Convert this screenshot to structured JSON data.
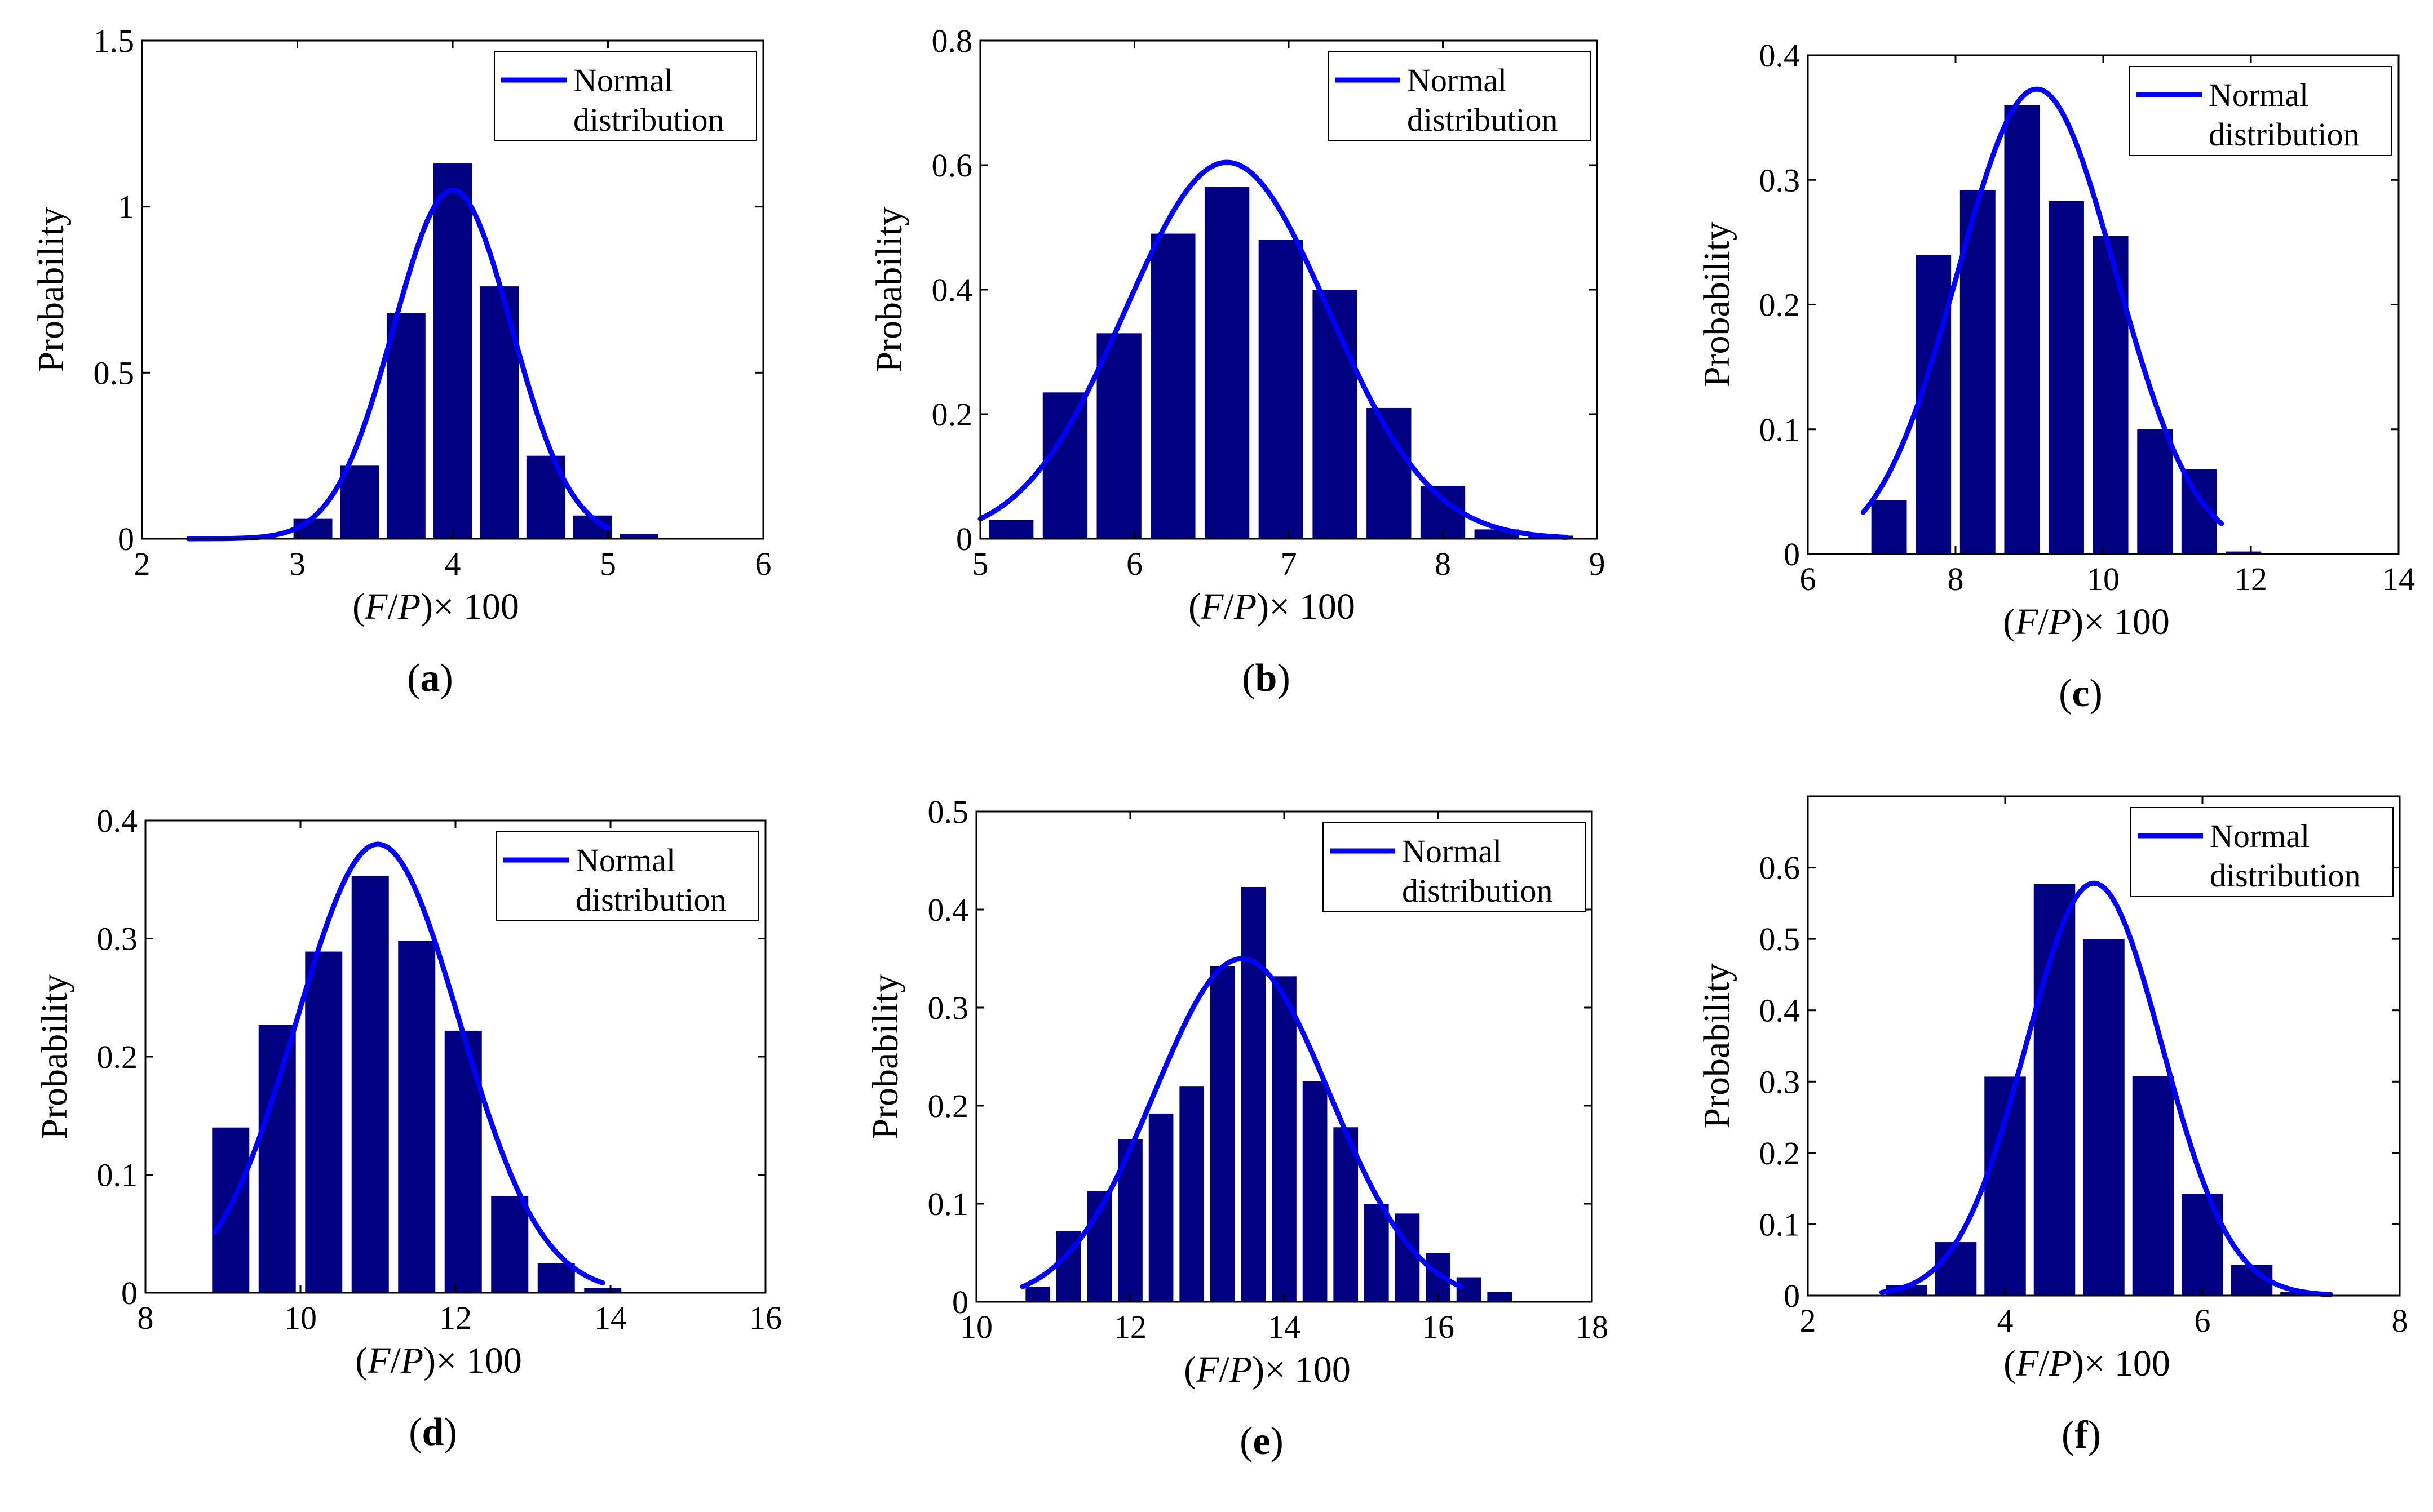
{
  "figure": {
    "bar_color": "#000080",
    "curve_color": "#0000ff",
    "legend_label": "Normal distribution",
    "legend_lines": [
      "Normal",
      "distribution"
    ]
  },
  "chart_data": [
    {
      "id": "a",
      "panel_label": "a",
      "type": "bar",
      "xlabel": "(F/P)× 100",
      "ylabel": "Probability",
      "xlim": [
        2,
        6
      ],
      "ylim": [
        0,
        1.5
      ],
      "xticks": [
        2,
        3,
        4,
        5,
        6
      ],
      "yticks": [
        0,
        0.5,
        1,
        1.5
      ],
      "xtick_labels": [
        "2",
        "3",
        "4",
        "5",
        "6"
      ],
      "ytick_labels": [
        "0",
        "0.5",
        "1",
        "1.5"
      ],
      "bar_width": 0.25,
      "bins": [
        3.1,
        3.4,
        3.7,
        4.0,
        4.3,
        4.6,
        4.9,
        5.2
      ],
      "values": [
        0.06,
        0.22,
        0.68,
        1.13,
        0.76,
        0.25,
        0.07,
        0.015
      ],
      "normal_fit": {
        "mu": 4.0,
        "sigma": 0.38,
        "x_range": [
          2.3,
          5.0
        ]
      },
      "legend_position": "top-right"
    },
    {
      "id": "b",
      "panel_label": "b",
      "type": "bar",
      "xlabel": "(F/P)× 100",
      "ylabel": "Probability",
      "xlim": [
        5,
        9
      ],
      "ylim": [
        0,
        0.8
      ],
      "xticks": [
        5,
        6,
        7,
        8,
        9
      ],
      "yticks": [
        0,
        0.2,
        0.4,
        0.6,
        0.8
      ],
      "xtick_labels": [
        "5",
        "6",
        "7",
        "8",
        "9"
      ],
      "ytick_labels": [
        "0",
        "0.2",
        "0.4",
        "0.6",
        "0.8"
      ],
      "bar_width": 0.29,
      "bins": [
        5.2,
        5.55,
        5.9,
        6.25,
        6.6,
        6.95,
        7.3,
        7.65,
        8.0,
        8.35,
        8.7
      ],
      "values": [
        0.03,
        0.235,
        0.33,
        0.49,
        0.565,
        0.48,
        0.4,
        0.21,
        0.085,
        0.015,
        0.005
      ],
      "normal_fit": {
        "mu": 6.6,
        "sigma": 0.66,
        "x_range": [
          5.0,
          8.8
        ]
      },
      "legend_position": "top-right"
    },
    {
      "id": "c",
      "panel_label": "c",
      "type": "bar",
      "xlabel": "(F/P)× 100",
      "ylabel": "Probability",
      "xlim": [
        6,
        14
      ],
      "ylim": [
        0,
        0.4
      ],
      "xticks": [
        6,
        8,
        10,
        12,
        14
      ],
      "yticks": [
        0,
        0.1,
        0.2,
        0.3,
        0.4
      ],
      "xtick_labels": [
        "6",
        "8",
        "10",
        "12",
        "14"
      ],
      "ytick_labels": [
        "0",
        "0.1",
        "0.2",
        "0.3",
        "0.4"
      ],
      "bar_width": 0.48,
      "bins": [
        7.1,
        7.7,
        8.3,
        8.9,
        9.5,
        10.1,
        10.7,
        11.3,
        11.9
      ],
      "values": [
        0.043,
        0.24,
        0.292,
        0.36,
        0.283,
        0.255,
        0.1,
        0.068,
        0.002
      ],
      "normal_fit": {
        "mu": 9.1,
        "sigma": 1.07,
        "x_range": [
          6.75,
          11.6
        ]
      },
      "legend_position": "top-right"
    },
    {
      "id": "d",
      "panel_label": "d",
      "type": "bar",
      "xlabel": "(F/P)× 100",
      "ylabel": "Probability",
      "xlim": [
        8,
        16
      ],
      "ylim": [
        0,
        0.4
      ],
      "xticks": [
        8,
        10,
        12,
        14,
        16
      ],
      "yticks": [
        0,
        0.1,
        0.2,
        0.3,
        0.4
      ],
      "xtick_labels": [
        "8",
        "10",
        "12",
        "14",
        "16"
      ],
      "ytick_labels": [
        "0",
        "0.1",
        "0.2",
        "0.3",
        "0.4"
      ],
      "bar_width": 0.48,
      "bins": [
        9.1,
        9.7,
        10.3,
        10.9,
        11.5,
        12.1,
        12.7,
        13.3,
        13.9
      ],
      "values": [
        0.14,
        0.227,
        0.289,
        0.353,
        0.298,
        0.222,
        0.082,
        0.025,
        0.004
      ],
      "normal_fit": {
        "mu": 11.0,
        "sigma": 1.05,
        "x_range": [
          8.9,
          13.9
        ]
      },
      "legend_position": "top-right"
    },
    {
      "id": "e",
      "panel_label": "e",
      "type": "bar",
      "xlabel": "(F/P)× 100",
      "ylabel": "Probability",
      "xlim": [
        10,
        18
      ],
      "ylim": [
        0,
        0.5
      ],
      "xticks": [
        10,
        12,
        14,
        16,
        18
      ],
      "yticks": [
        0,
        0.1,
        0.2,
        0.3,
        0.4,
        0.5
      ],
      "xtick_labels": [
        "10",
        "12",
        "14",
        "16",
        "18"
      ],
      "ytick_labels": [
        "0",
        "0.1",
        "0.2",
        "0.3",
        "0.4",
        "0.5"
      ],
      "bar_width": 0.32,
      "bins": [
        10.8,
        11.2,
        11.6,
        12.0,
        12.4,
        12.8,
        13.2,
        13.6,
        14.0,
        14.4,
        14.8,
        15.2,
        15.6,
        16.0,
        16.4,
        16.8
      ],
      "values": [
        0.015,
        0.072,
        0.113,
        0.166,
        0.192,
        0.22,
        0.342,
        0.423,
        0.332,
        0.225,
        0.178,
        0.1,
        0.09,
        0.05,
        0.025,
        0.01
      ],
      "normal_fit": {
        "mu": 13.45,
        "sigma": 1.14,
        "x_range": [
          10.6,
          16.3
        ]
      },
      "legend_position": "top-right"
    },
    {
      "id": "f",
      "panel_label": "f",
      "type": "bar",
      "xlabel": "(F/P)× 100",
      "ylabel": "Probability",
      "xlim": [
        2,
        8
      ],
      "ylim": [
        0,
        0.7
      ],
      "xticks": [
        2,
        4,
        6,
        8
      ],
      "yticks": [
        0,
        0.1,
        0.2,
        0.3,
        0.4,
        0.5,
        0.6
      ],
      "xtick_labels": [
        "2",
        "4",
        "6",
        "8"
      ],
      "ytick_labels": [
        "0",
        "0.1",
        "0.2",
        "0.3",
        "0.4",
        "0.5",
        "0.6"
      ],
      "bar_width": 0.42,
      "bins": [
        3.0,
        3.5,
        4.0,
        4.5,
        5.0,
        5.5,
        6.0,
        6.5,
        7.0,
        7.5
      ],
      "values": [
        0.015,
        0.075,
        0.307,
        0.577,
        0.5,
        0.308,
        0.143,
        0.043,
        0.005,
        0.001
      ],
      "normal_fit": {
        "mu": 4.9,
        "sigma": 0.69,
        "x_range": [
          2.75,
          7.3
        ]
      },
      "legend_position": "top-right"
    }
  ]
}
